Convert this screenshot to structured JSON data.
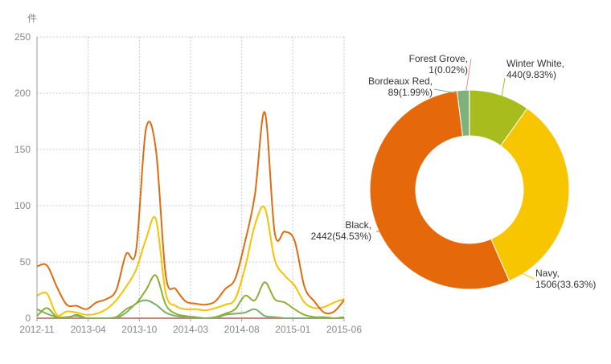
{
  "chart_data": [
    {
      "type": "line",
      "ylabel": "件",
      "ylim": [
        0,
        250
      ],
      "y_ticks": [
        "0",
        "50",
        "100",
        "150",
        "200",
        "250"
      ],
      "x_tick_labels": [
        "2012-11",
        "2013-04",
        "2013-10",
        "2014-03",
        "2014-08",
        "2015-01",
        "2015-06"
      ],
      "grid": true,
      "colors": [
        "#e06c10",
        "#f5c300",
        "#8db030",
        "#78b06a",
        "#e8766a"
      ],
      "x": [
        "2012-11",
        "2012-12",
        "2013-01",
        "2013-02",
        "2013-03",
        "2013-04",
        "2013-05",
        "2013-06",
        "2013-07",
        "2013-08",
        "2013-09",
        "2013-10",
        "2013-11",
        "2013-12",
        "2014-01",
        "2014-02",
        "2014-03",
        "2014-04",
        "2014-05",
        "2014-06",
        "2014-07",
        "2014-08",
        "2014-09",
        "2014-10",
        "2014-11",
        "2014-12",
        "2015-01",
        "2015-02",
        "2015-03",
        "2015-04",
        "2015-05",
        "2015-06"
      ],
      "series": [
        {
          "name": "Black",
          "values": [
            46,
            47,
            28,
            12,
            11,
            8,
            14,
            17,
            25,
            57,
            60,
            168,
            150,
            38,
            26,
            15,
            13,
            12,
            15,
            26,
            35,
            68,
            110,
            183,
            76,
            77,
            69,
            28,
            15,
            5,
            6,
            16
          ]
        },
        {
          "name": "Navy",
          "values": [
            20,
            22,
            3,
            6,
            5,
            3,
            4,
            8,
            16,
            28,
            43,
            70,
            88,
            22,
            11,
            8,
            8,
            7,
            9,
            12,
            17,
            45,
            83,
            98,
            52,
            38,
            29,
            14,
            9,
            10,
            14,
            17
          ]
        },
        {
          "name": "Winter White",
          "values": [
            2,
            9,
            1,
            1,
            2,
            0,
            0,
            0,
            1,
            8,
            13,
            25,
            38,
            12,
            4,
            2,
            1,
            0,
            1,
            4,
            8,
            20,
            16,
            32,
            17,
            14,
            8,
            3,
            1,
            1,
            0,
            1
          ]
        },
        {
          "name": "Bordeaux Red",
          "values": [
            8,
            4,
            1,
            0,
            3,
            0,
            0,
            0,
            0,
            5,
            13,
            16,
            12,
            5,
            2,
            1,
            0,
            0,
            0,
            3,
            4,
            5,
            8,
            2,
            1,
            0,
            0,
            0,
            0,
            0,
            0,
            0
          ]
        },
        {
          "name": "Forest Grove",
          "values": [
            0,
            0,
            0,
            0,
            0,
            0,
            0,
            0,
            0,
            0,
            0,
            0,
            0,
            0,
            0,
            0,
            0,
            0,
            0,
            0,
            0,
            0,
            0,
            0,
            0,
            0,
            0,
            0,
            0,
            0,
            0,
            0
          ]
        }
      ]
    },
    {
      "type": "pie",
      "subtype": "donut",
      "slices": [
        {
          "name": "Winter White",
          "value": 440,
          "label1": "Winter White,",
          "label2": "440(9.83%)",
          "color": "#a8bc1e"
        },
        {
          "name": "Navy",
          "value": 1506,
          "label1": "Navy,",
          "label2": "1506(33.63%)",
          "color": "#f7c600"
        },
        {
          "name": "Black",
          "value": 2442,
          "label1": "Black,",
          "label2": "2442(54.53%)",
          "color": "#e5690b"
        },
        {
          "name": "Bordeaux Red",
          "value": 89,
          "label1": "Bordeaux Red,",
          "label2": "89(1.99%)",
          "color": "#7fb27a"
        },
        {
          "name": "Forest Grove",
          "value": 1,
          "label1": "Forest Grove,",
          "label2": "1(0.02%)",
          "color": "#e89090"
        }
      ]
    }
  ]
}
